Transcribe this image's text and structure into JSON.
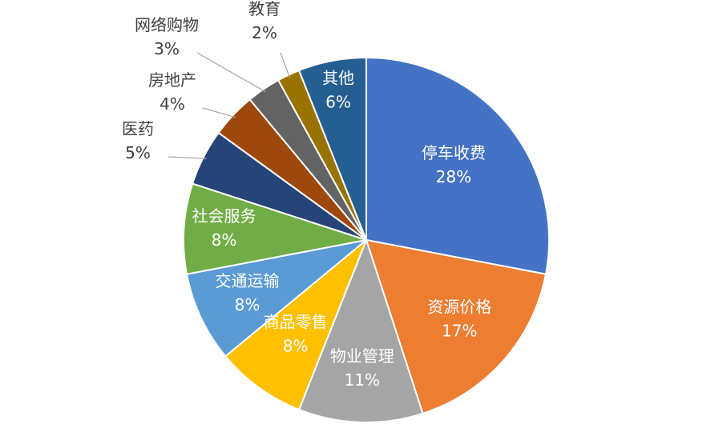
{
  "chart_data": {
    "type": "pie",
    "title": "",
    "start_angle_deg": 0,
    "direction": "clockwise",
    "slices": [
      {
        "label": "停车收费",
        "value": 28,
        "value_label": "28%",
        "color": "#4472C4",
        "label_position": "inside"
      },
      {
        "label": "资源价格",
        "value": 17,
        "value_label": "17%",
        "color": "#ED7D31",
        "label_position": "inside"
      },
      {
        "label": "物业管理",
        "value": 11,
        "value_label": "11%",
        "color": "#A5A5A5",
        "label_position": "inside"
      },
      {
        "label": "商品零售",
        "value": 8,
        "value_label": "8%",
        "color": "#FFC000",
        "label_position": "inside"
      },
      {
        "label": "交通运输",
        "value": 8,
        "value_label": "8%",
        "color": "#5B9BD5",
        "label_position": "inside"
      },
      {
        "label": "社会服务",
        "value": 8,
        "value_label": "8%",
        "color": "#70AD47",
        "label_position": "inside"
      },
      {
        "label": "医药",
        "value": 5,
        "value_label": "5%",
        "color": "#264478",
        "label_position": "outside"
      },
      {
        "label": "房地产",
        "value": 4,
        "value_label": "4%",
        "color": "#9E480E",
        "label_position": "outside"
      },
      {
        "label": "网络购物",
        "value": 3,
        "value_label": "3%",
        "color": "#636363",
        "label_position": "outside"
      },
      {
        "label": "教育",
        "value": 2,
        "value_label": "2%",
        "color": "#997300",
        "label_position": "outside"
      },
      {
        "label": "其他",
        "value": 6,
        "value_label": "6%",
        "color": "#255E91",
        "label_position": "inside"
      }
    ]
  }
}
